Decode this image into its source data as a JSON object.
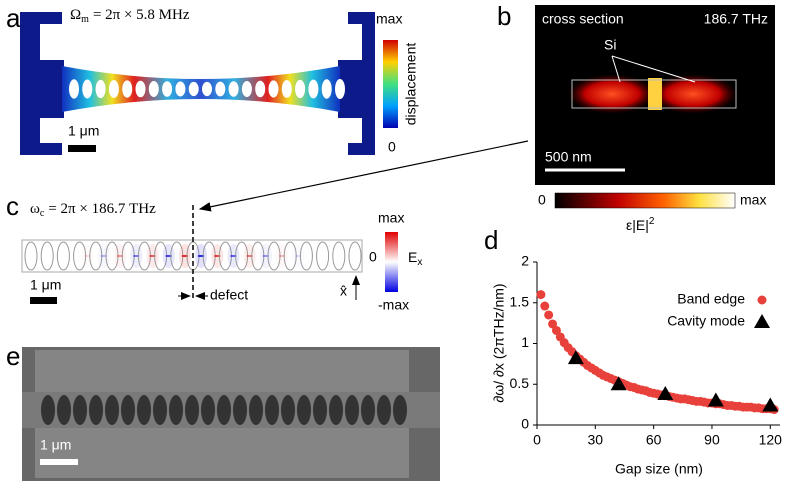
{
  "panel_labels": [
    "a",
    "b",
    "c",
    "d",
    "e"
  ],
  "panel_a": {
    "frequency": {
      "symbol": "Ω",
      "subscript": "m",
      "rest": "= 2π × 5.8 MHz"
    },
    "colorbar_max": "max",
    "colorbar_label": "displacement",
    "colorbar_min": "0",
    "scale_bar": "1 μm"
  },
  "panel_b": {
    "title": "cross section",
    "frequency": "186.7 THz",
    "material": "Si",
    "scale_bar": "500 nm",
    "colorbar_min": "0",
    "colorbar_max": "max",
    "colorbar_label": {
      "base": "ε|E|",
      "superscript": "2"
    }
  },
  "panel_c": {
    "frequency": {
      "symbol": "ω",
      "subscript": "c",
      "rest": "= 2π × 186.7 THz"
    },
    "colorbar_max": "max",
    "colorbar_mid": "0",
    "colorbar_min": "-max",
    "colorbar_label": {
      "base": "E",
      "subscript": "x"
    },
    "scale_bar": "1 μm",
    "defect": "defect",
    "axis": "x̂"
  },
  "panel_e": {
    "scale_bar": "1 μm"
  },
  "chart_data": {
    "type": "scatter",
    "xlabel": "Gap size (nm)",
    "ylabel": "∂ω/ ∂x (2πTHz/nm)",
    "xlim": [
      0,
      125
    ],
    "ylim": [
      0,
      2
    ],
    "xticks": [
      0,
      30,
      60,
      90,
      120
    ],
    "yticks": [
      0,
      0.5,
      1,
      1.5,
      2
    ],
    "grid": false,
    "legend": "upper right",
    "series": [
      {
        "name": "Band edge",
        "color": "#e8403a",
        "marker": "circle",
        "x": [
          2,
          4,
          6,
          8,
          10,
          12,
          14,
          16,
          18,
          20,
          22,
          24,
          26,
          28,
          30,
          32,
          34,
          36,
          38,
          40,
          42,
          44,
          46,
          48,
          50,
          52,
          54,
          56,
          58,
          60,
          62,
          64,
          66,
          68,
          70,
          72,
          74,
          76,
          78,
          80,
          82,
          84,
          86,
          88,
          90,
          92,
          94,
          96,
          98,
          100,
          102,
          104,
          106,
          108,
          110,
          112,
          114,
          116,
          118,
          120,
          122
        ],
        "values": [
          1.6,
          1.46,
          1.35,
          1.24,
          1.16,
          1.08,
          1.01,
          0.95,
          0.9,
          0.85,
          0.81,
          0.77,
          0.73,
          0.7,
          0.67,
          0.64,
          0.61,
          0.59,
          0.57,
          0.55,
          0.53,
          0.51,
          0.49,
          0.47,
          0.46,
          0.44,
          0.43,
          0.42,
          0.4,
          0.39,
          0.38,
          0.37,
          0.36,
          0.35,
          0.34,
          0.33,
          0.32,
          0.32,
          0.31,
          0.3,
          0.29,
          0.29,
          0.28,
          0.27,
          0.27,
          0.26,
          0.26,
          0.25,
          0.24,
          0.24,
          0.23,
          0.23,
          0.22,
          0.22,
          0.22,
          0.21,
          0.21,
          0.2,
          0.2,
          0.2,
          0.19
        ]
      },
      {
        "name": "Cavity mode",
        "color": "#000000",
        "marker": "triangle",
        "x": [
          20,
          42,
          66,
          92,
          120
        ],
        "values": [
          0.82,
          0.5,
          0.38,
          0.3,
          0.24
        ]
      }
    ]
  }
}
